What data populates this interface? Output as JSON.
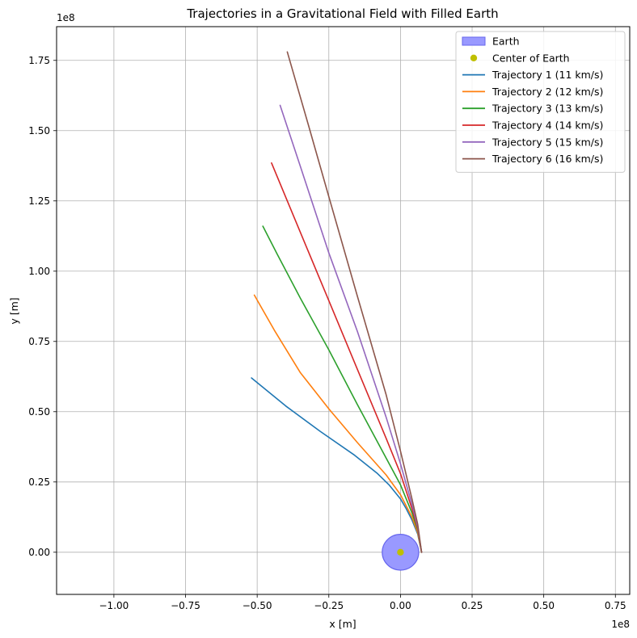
{
  "chart_data": {
    "type": "line",
    "title": "Trajectories in a Gravitational Field with Filled Earth",
    "xlabel": "x [m]",
    "ylabel": "y [m]",
    "x_offset_label": "1e8",
    "y_offset_label": "1e8",
    "xlim": [
      -1.2,
      0.8
    ],
    "ylim": [
      -0.15,
      1.87
    ],
    "xticks": [
      -1.0,
      -0.75,
      -0.5,
      -0.25,
      0.0,
      0.25,
      0.5,
      0.75
    ],
    "xtick_labels": [
      "−1.00",
      "−0.75",
      "−0.50",
      "−0.25",
      "0.00",
      "0.25",
      "0.50",
      "0.75"
    ],
    "yticks": [
      0.0,
      0.25,
      0.5,
      0.75,
      1.0,
      1.25,
      1.5,
      1.75
    ],
    "ytick_labels": [
      "0.00",
      "0.25",
      "0.50",
      "0.75",
      "1.00",
      "1.25",
      "1.50",
      "1.75"
    ],
    "grid": true,
    "legend_position": "top-right",
    "earth": {
      "label": "Earth",
      "center": [
        0,
        0
      ],
      "radius": 0.0637,
      "fill_color": "#9999ff",
      "edge_color": "#6666ee"
    },
    "center_marker": {
      "label": "Center of Earth",
      "x": 0,
      "y": 0,
      "color": "#bfbf00"
    },
    "series": [
      {
        "name": "Trajectory 1 (11 km/s)",
        "color": "#1f77b4",
        "x": [
          0.0735,
          0.06,
          0.04,
          0.02,
          0.0,
          -0.04,
          -0.08,
          -0.16,
          -0.28,
          -0.4,
          -0.52
        ],
        "y": [
          0.0,
          0.065,
          0.115,
          0.155,
          0.19,
          0.24,
          0.28,
          0.345,
          0.43,
          0.52,
          0.62
        ]
      },
      {
        "name": "Trajectory 2 (12 km/s)",
        "color": "#ff7f0e",
        "x": [
          0.0735,
          0.06,
          0.04,
          0.0,
          -0.05,
          -0.15,
          -0.25,
          -0.35,
          -0.44,
          -0.51
        ],
        "y": [
          0.0,
          0.07,
          0.125,
          0.205,
          0.275,
          0.39,
          0.51,
          0.64,
          0.79,
          0.915
        ]
      },
      {
        "name": "Trajectory 3 (13 km/s)",
        "color": "#2ca02c",
        "x": [
          0.0735,
          0.06,
          0.04,
          0.0,
          -0.05,
          -0.15,
          -0.25,
          -0.35,
          -0.43,
          -0.48
        ],
        "y": [
          0.0,
          0.08,
          0.14,
          0.24,
          0.335,
          0.525,
          0.72,
          0.905,
          1.06,
          1.16
        ]
      },
      {
        "name": "Trajectory 4 (14 km/s)",
        "color": "#d62728",
        "x": [
          0.0735,
          0.06,
          0.04,
          0.0,
          -0.05,
          -0.15,
          -0.25,
          -0.35,
          -0.45
        ],
        "y": [
          0.0,
          0.085,
          0.155,
          0.28,
          0.405,
          0.65,
          0.895,
          1.14,
          1.385
        ]
      },
      {
        "name": "Trajectory 5 (15 km/s)",
        "color": "#9467bd",
        "x": [
          0.0735,
          0.06,
          0.04,
          0.0,
          -0.05,
          -0.15,
          -0.25,
          -0.35,
          -0.42
        ],
        "y": [
          0.0,
          0.09,
          0.17,
          0.315,
          0.48,
          0.785,
          1.065,
          1.375,
          1.59
        ]
      },
      {
        "name": "Trajectory 6 (16 km/s)",
        "color": "#8c564b",
        "x": [
          0.0735,
          0.06,
          0.04,
          0.0,
          -0.05,
          -0.15,
          -0.25,
          -0.32,
          -0.395
        ],
        "y": [
          0.0,
          0.1,
          0.19,
          0.36,
          0.56,
          0.91,
          1.265,
          1.515,
          1.78
        ]
      }
    ]
  }
}
